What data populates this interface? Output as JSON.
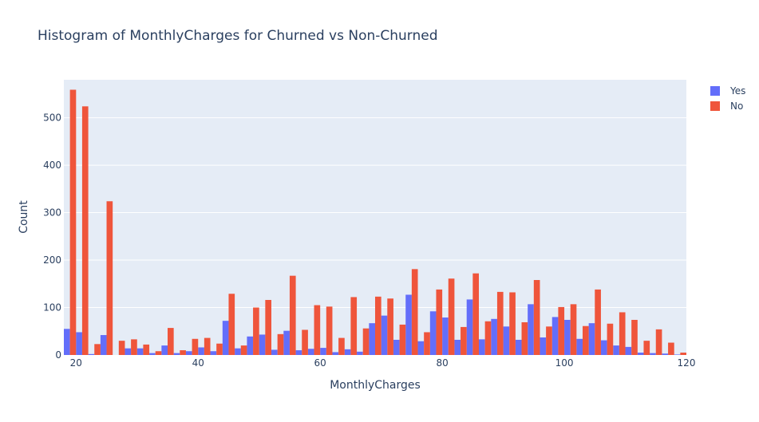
{
  "chart_data": {
    "type": "bar",
    "title": "Histogram of MonthlyCharges for Churned vs Non-Churned",
    "xlabel": "MonthlyCharges",
    "ylabel": "Count",
    "xlim": [
      18,
      120
    ],
    "ylim": [
      0,
      580
    ],
    "xticks": [
      20,
      40,
      60,
      80,
      100,
      120
    ],
    "yticks": [
      0,
      100,
      200,
      300,
      400,
      500
    ],
    "bin_width": 2,
    "grid": true,
    "legend_position": "top-right",
    "x": [
      19,
      21,
      23,
      25,
      27,
      29,
      31,
      33,
      35,
      37,
      39,
      41,
      43,
      45,
      47,
      49,
      51,
      53,
      55,
      57,
      59,
      61,
      63,
      65,
      67,
      69,
      71,
      73,
      75,
      77,
      79,
      81,
      83,
      85,
      87,
      89,
      91,
      93,
      95,
      97,
      99,
      101,
      103,
      105,
      107,
      109,
      111,
      113,
      115,
      117,
      119
    ],
    "series": [
      {
        "name": "Yes",
        "color": "#636efa",
        "values": [
          55,
          48,
          2,
          42,
          0,
          14,
          14,
          4,
          20,
          4,
          8,
          16,
          8,
          72,
          14,
          39,
          43,
          11,
          51,
          10,
          13,
          15,
          6,
          12,
          7,
          67,
          83,
          32,
          127,
          29,
          92,
          79,
          32,
          117,
          33,
          76,
          60,
          32,
          107,
          37,
          80,
          74,
          34,
          67,
          31,
          20,
          17,
          5,
          4,
          3,
          1
        ]
      },
      {
        "name": "No",
        "color": "#ef553b",
        "values": [
          559,
          524,
          23,
          324,
          30,
          33,
          22,
          8,
          57,
          10,
          34,
          36,
          24,
          129,
          20,
          100,
          116,
          44,
          167,
          53,
          105,
          102,
          36,
          122,
          56,
          123,
          119,
          64,
          181,
          48,
          138,
          161,
          59,
          172,
          71,
          133,
          132,
          69,
          158,
          60,
          101,
          107,
          61,
          138,
          66,
          90,
          74,
          30,
          54,
          26,
          5
        ]
      }
    ]
  }
}
